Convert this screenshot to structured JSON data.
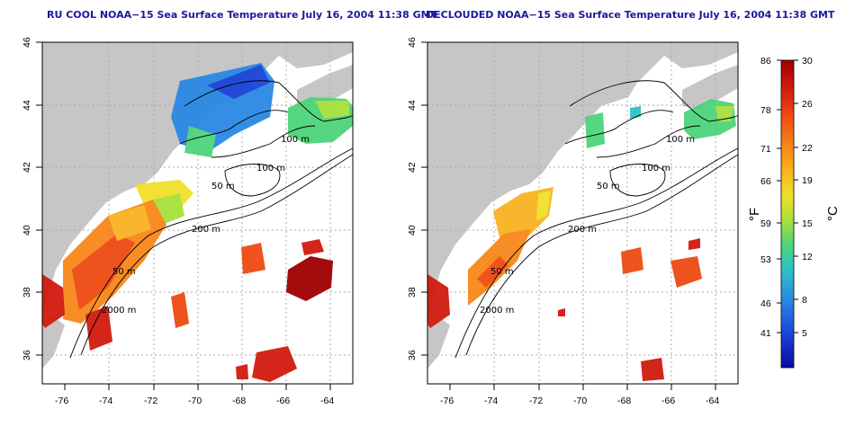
{
  "panels": [
    {
      "title": "RU COOL NOAA−15 Sea Surface Temperature July 16, 2004 11:38 GMT",
      "lat_ticks": [
        "36",
        "38",
        "40",
        "42",
        "44",
        "46"
      ],
      "lon_ticks": [
        "-76",
        "-74",
        "-72",
        "-70",
        "-68",
        "-66",
        "-64"
      ],
      "contour_labels": [
        "100 m",
        "100 m",
        "50 m",
        "200 m",
        "50 m",
        "2000 m"
      ]
    },
    {
      "title": "DECLOUDED NOAA−15 Sea Surface Temperature July 16, 2004 11:38 GMT",
      "lat_ticks": [
        "36",
        "38",
        "40",
        "42",
        "44",
        "46"
      ],
      "lon_ticks": [
        "-76",
        "-74",
        "-72",
        "-70",
        "-68",
        "-66",
        "-64"
      ],
      "contour_labels": [
        "100 m",
        "100 m",
        "50 m",
        "200 m",
        "50 m",
        "2000 m"
      ]
    }
  ],
  "colorbar": {
    "fahrenheit_ticks": [
      "86",
      "78",
      "71",
      "66",
      "59",
      "53",
      "46",
      "41"
    ],
    "celsius_ticks": [
      "30",
      "26",
      "22",
      "19",
      "15",
      "12",
      "8",
      "5"
    ],
    "fahrenheit_unit": "°F",
    "celsius_unit": "°C",
    "colors": [
      "#9e0000",
      "#d11a0e",
      "#ee4a12",
      "#f8861a",
      "#f9b321",
      "#f0e02a",
      "#a8e03c",
      "#4dd47a",
      "#2ec2c6",
      "#2a88e4",
      "#1a44d8",
      "#0a0a9e"
    ]
  },
  "map_colors": {
    "land": "#c6c6c6",
    "ocean": "#ffffff",
    "contour": "#000000",
    "grid": "#aaaaaa"
  }
}
